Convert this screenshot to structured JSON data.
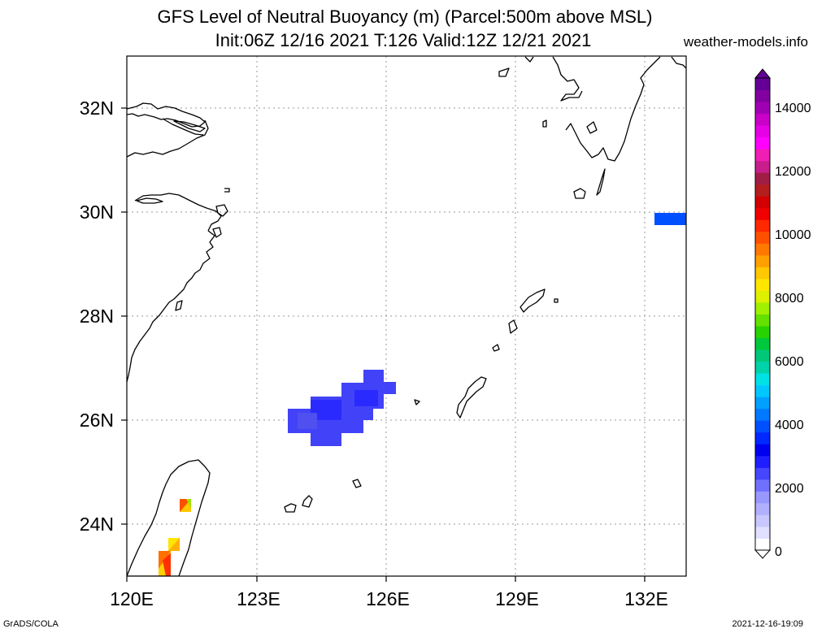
{
  "header": {
    "title_line1": "GFS Level of Neutral Buoyancy (m) (Parcel:500m above MSL)",
    "title_line2": "Init:06Z 12/16 2021 T:126 Valid:12Z 12/21 2021",
    "site": "weather-models.info"
  },
  "map": {
    "lon_labels": [
      "120E",
      "123E",
      "126E",
      "129E",
      "132E"
    ],
    "lat_labels": [
      "32N",
      "30N",
      "28N",
      "26N",
      "24N"
    ],
    "lon_range": [
      120,
      133
    ],
    "lat_range": [
      23,
      33
    ]
  },
  "colorbar": {
    "labels": [
      "0",
      "2000",
      "4000",
      "6000",
      "8000",
      "10000",
      "12000",
      "14000"
    ],
    "colors": [
      "#ffffff",
      "#e0e0ff",
      "#c8c8ff",
      "#b0b0ff",
      "#9898ff",
      "#7070ff",
      "#4646ff",
      "#1e1eff",
      "#0000f0",
      "#0028ff",
      "#0050ff",
      "#0078ff",
      "#00a0ff",
      "#00c8ff",
      "#00e1e6",
      "#00d2aa",
      "#00c878",
      "#00c83c",
      "#28d200",
      "#64e100",
      "#a0f000",
      "#dcf000",
      "#ffe600",
      "#ffc800",
      "#ffa000",
      "#ff7800",
      "#ff5000",
      "#ff2800",
      "#f00000",
      "#d20000",
      "#b41e1e",
      "#a01e46",
      "#c81e8c",
      "#f01eb4",
      "#ff00ff",
      "#e600e6",
      "#c800c8",
      "#a000b4",
      "#8200a0",
      "#640096"
    ]
  },
  "footer": {
    "left": "GrADS/COLA",
    "right": "2021-12-16-19:09"
  }
}
